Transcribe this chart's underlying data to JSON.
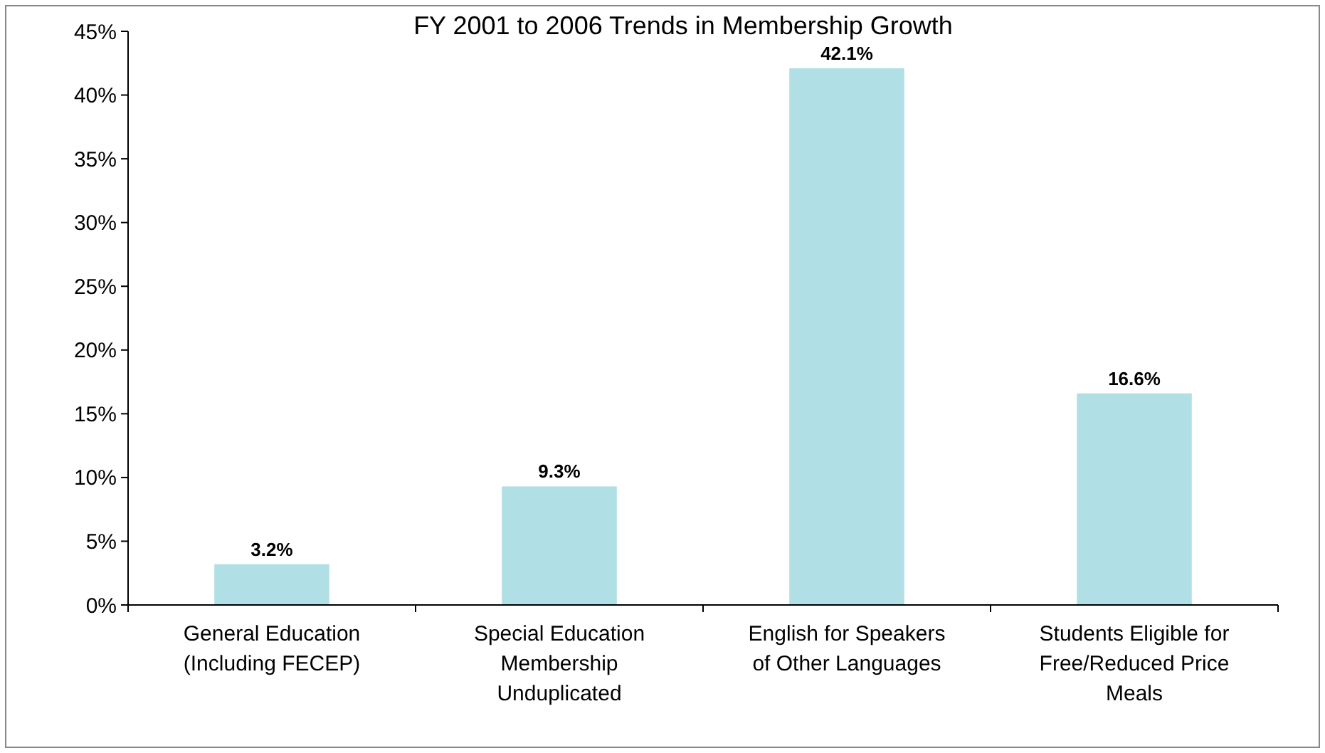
{
  "chart_data": {
    "type": "bar",
    "title": "FY 2001 to 2006 Trends in Membership Growth",
    "categories": [
      "General Education (Including FECEP)",
      "Special Education Membership Unduplicated",
      "English for Speakers of Other Languages",
      "Students Eligible for Free/Reduced Price Meals"
    ],
    "values": [
      3.2,
      9.3,
      42.1,
      16.6
    ],
    "value_labels": [
      "3.2%",
      "9.3%",
      "42.1%",
      "16.6%"
    ],
    "color": "#b0e0e6",
    "ylim": [
      0,
      45
    ],
    "yticks": [
      {
        "value": 0,
        "label": "0%"
      },
      {
        "value": 5,
        "label": "5%"
      },
      {
        "value": 10,
        "label": "10%"
      },
      {
        "value": 15,
        "label": "15%"
      },
      {
        "value": 20,
        "label": "20%"
      },
      {
        "value": 25,
        "label": "25%"
      },
      {
        "value": 30,
        "label": "30%"
      },
      {
        "value": 35,
        "label": "35%"
      },
      {
        "value": 40,
        "label": "40%"
      },
      {
        "value": 45,
        "label": "45%"
      }
    ],
    "grid": false
  }
}
